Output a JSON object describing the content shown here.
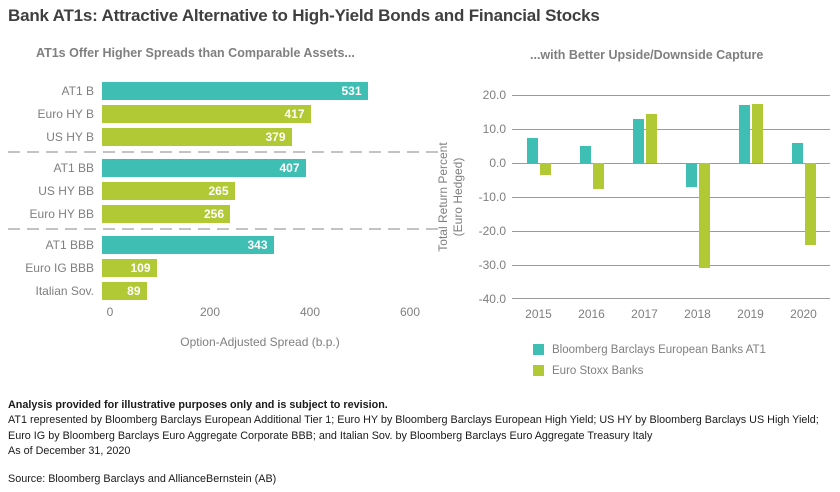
{
  "page": {
    "title": "Bank AT1s: Attractive Alternative to High-Yield Bonds and Financial Stocks"
  },
  "colors": {
    "at1_teal": "#3FBEB4",
    "comparison_green": "#B2C936",
    "axis_text_gray": "#7F7F7F",
    "gridline_gray": "#9B9B9B",
    "footnote_text": "#1A1A1A"
  },
  "chart_data": [
    {
      "type": "bar",
      "orientation": "horizontal",
      "title": "AT1s Offer Higher Spreads than Comparable Assets...",
      "xlabel": "Option-Adjusted Spread (b.p.)",
      "xlim": [
        0,
        600
      ],
      "xticks": [
        0,
        200,
        400,
        600
      ],
      "categories": [
        "AT1 B",
        "Euro HY B",
        "US HY B",
        "AT1 BB",
        "US HY BB",
        "Euro HY BB",
        "AT1 BBB",
        "Euro IG BBB",
        "Italian Sov."
      ],
      "values": [
        531,
        417,
        379,
        407,
        265,
        256,
        343,
        109,
        89
      ],
      "bar_colors": [
        "teal",
        "green",
        "green",
        "teal",
        "green",
        "green",
        "teal",
        "green",
        "green"
      ],
      "separators_after_index": [
        2,
        5
      ],
      "grid": false,
      "value_labels": "inside-end"
    },
    {
      "type": "bar",
      "orientation": "vertical",
      "title": "...with Better Upside/Downside Capture",
      "ylabel": "Total Return Percent (Euro Hedged)",
      "ylabel_lines": [
        "Total Return Percent",
        "(Euro Hedged)"
      ],
      "ylim": [
        -40,
        20
      ],
      "yticks": [
        20.0,
        10.0,
        0.0,
        -10.0,
        -20.0,
        -30.0,
        -40.0
      ],
      "categories": [
        "2015",
        "2016",
        "2017",
        "2018",
        "2019",
        "2020"
      ],
      "series": [
        {
          "name": "Bloomberg Barclays European Banks AT1",
          "color": "teal",
          "values": [
            7.5,
            5.0,
            13.0,
            -7.0,
            17.0,
            6.0
          ]
        },
        {
          "name": "Euro Stoxx Banks",
          "color": "green",
          "values": [
            -3.5,
            -7.5,
            14.5,
            -31.0,
            17.5,
            -24.0
          ]
        }
      ],
      "grid": true,
      "legend_position": "bottom"
    }
  ],
  "footer": {
    "disclaimer": "Analysis provided for illustrative purposes only and is subject to revision.",
    "definitions": "AT1 represented by Bloomberg Barclays European Additional Tier 1; Euro HY by Bloomberg Barclays European High Yield; US HY by Bloomberg Barclays US High Yield; Euro IG by Bloomberg Barclays Euro Aggregate Corporate BBB; and Italian Sov. by Bloomberg Barclays Euro Aggregate Treasury Italy",
    "as_of": "As of December 31, 2020",
    "source": "Source: Bloomberg Barclays and AllianceBernstein (AB)"
  }
}
